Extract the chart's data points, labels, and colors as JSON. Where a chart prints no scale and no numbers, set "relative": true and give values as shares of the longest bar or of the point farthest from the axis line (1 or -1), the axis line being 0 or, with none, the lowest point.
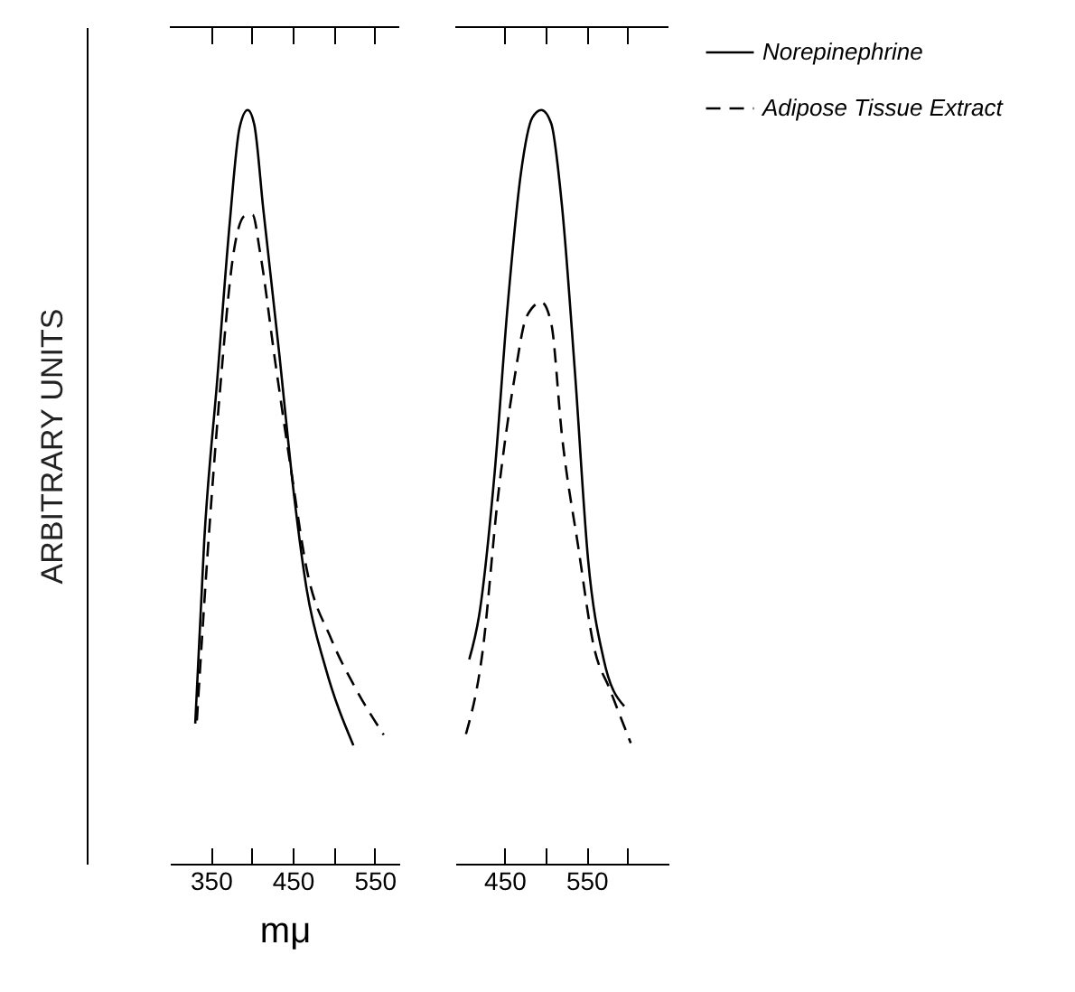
{
  "chart_data": [
    {
      "type": "line",
      "relative": true,
      "ylabel": "ARBITRARY UNITS",
      "xlabel": "mμ",
      "xlim": [
        300,
        580
      ],
      "xticks": [
        350,
        {
          "value": 400,
          "label": null
        },
        450,
        {
          "value": 500,
          "label": null
        },
        550
      ],
      "tick_labels": "x",
      "series": [
        {
          "color": "#000000",
          "line_style": "solid",
          "x": [
            331,
            342,
            358,
            373,
            385,
            395,
            403,
            414,
            433,
            452,
            467,
            490,
            524
          ],
          "values": [
            0.186,
            0.429,
            0.644,
            0.849,
            0.976,
            1.0,
            0.981,
            0.869,
            0.682,
            0.485,
            0.364,
            0.26,
            0.157
          ]
        },
        {
          "color": "#000000",
          "line_style": "dashed",
          "x": [
            333,
            346,
            361,
            378,
            392,
            401,
            410,
            429,
            448,
            467,
            497,
            527,
            561
          ],
          "values": [
            0.19,
            0.41,
            0.625,
            0.812,
            0.86,
            0.861,
            0.812,
            0.663,
            0.522,
            0.391,
            0.298,
            0.232,
            0.171
          ]
        }
      ]
    },
    {
      "type": "line",
      "relative": true,
      "xlim": [
        390,
        650
      ],
      "xticks": [
        450,
        {
          "value": 500,
          "label": null
        },
        550,
        {
          "value": 600,
          "label": null
        }
      ],
      "tick_labels": "x",
      "legend": "right",
      "series": [
        {
          "name": "Norepinephrine",
          "color": "#000000",
          "line_style": "solid",
          "x": [
            407,
            419,
            438,
            454,
            470,
            484,
            495,
            507,
            520,
            536,
            552,
            571,
            596
          ],
          "values": [
            0.271,
            0.329,
            0.519,
            0.742,
            0.916,
            0.99,
            1.0,
            0.982,
            0.874,
            0.651,
            0.403,
            0.271,
            0.209
          ]
        },
        {
          "name": "Adipose Tissue Extract",
          "color": "#000000",
          "line_style": "dashed",
          "x": [
            403,
            423,
            442,
            462,
            477,
            495,
            507,
            520,
            540,
            559,
            579,
            604
          ],
          "values": [
            0.172,
            0.279,
            0.486,
            0.643,
            0.726,
            0.745,
            0.717,
            0.569,
            0.42,
            0.288,
            0.23,
            0.16
          ]
        }
      ]
    }
  ]
}
